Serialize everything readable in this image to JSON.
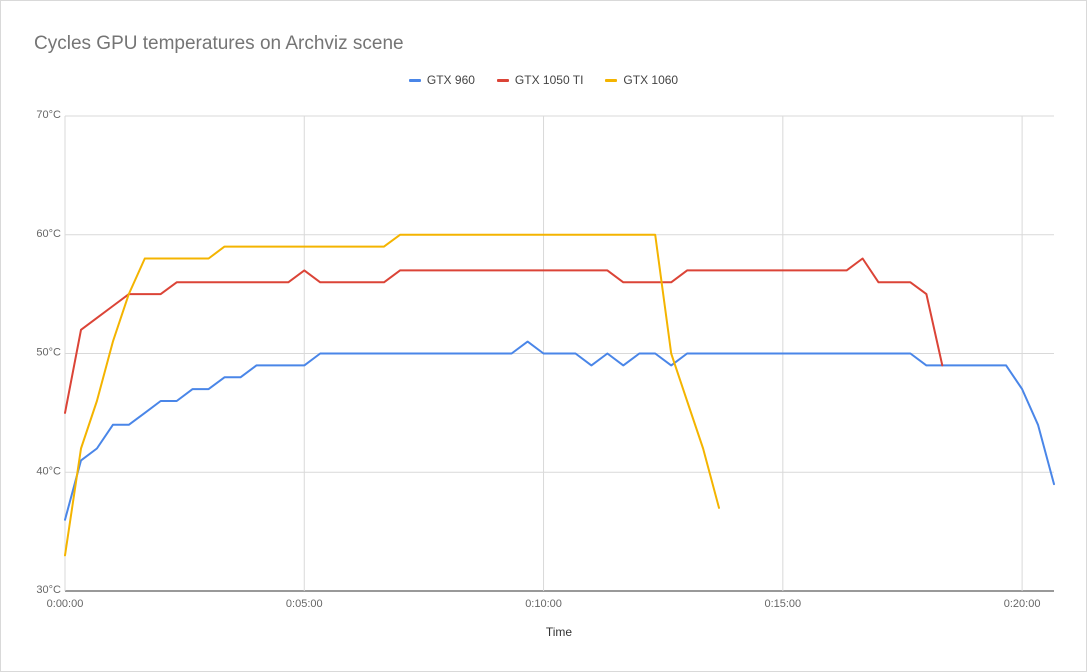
{
  "chart_data": {
    "type": "line",
    "title": "Cycles GPU temperatures on Archviz scene",
    "xlabel": "Time",
    "ylabel": "",
    "legend_position": "top",
    "grid": true,
    "y_axis": {
      "min": 30,
      "max": 70,
      "ticks": [
        30,
        40,
        50,
        60,
        70
      ],
      "tick_labels": [
        "30°C",
        "40°C",
        "50°C",
        "60°C",
        "70°C"
      ]
    },
    "x_axis": {
      "unit": "seconds",
      "min": 0,
      "max": 1240,
      "ticks": [
        0,
        300,
        600,
        900,
        1200
      ],
      "tick_labels": [
        "0:00:00",
        "0:05:00",
        "0:10:00",
        "0:15:00",
        "0:20:00"
      ]
    },
    "series": [
      {
        "name": "GTX 960",
        "color": "#4a86e8",
        "points": [
          [
            0,
            36
          ],
          [
            20,
            41
          ],
          [
            40,
            42
          ],
          [
            60,
            44
          ],
          [
            80,
            44
          ],
          [
            100,
            45
          ],
          [
            120,
            46
          ],
          [
            140,
            46
          ],
          [
            160,
            47
          ],
          [
            180,
            47
          ],
          [
            200,
            48
          ],
          [
            220,
            48
          ],
          [
            240,
            49
          ],
          [
            260,
            49
          ],
          [
            280,
            49
          ],
          [
            300,
            49
          ],
          [
            320,
            50
          ],
          [
            340,
            50
          ],
          [
            360,
            50
          ],
          [
            380,
            50
          ],
          [
            400,
            50
          ],
          [
            420,
            50
          ],
          [
            440,
            50
          ],
          [
            460,
            50
          ],
          [
            480,
            50
          ],
          [
            500,
            50
          ],
          [
            520,
            50
          ],
          [
            540,
            50
          ],
          [
            560,
            50
          ],
          [
            580,
            51
          ],
          [
            600,
            50
          ],
          [
            620,
            50
          ],
          [
            640,
            50
          ],
          [
            660,
            49
          ],
          [
            680,
            50
          ],
          [
            700,
            49
          ],
          [
            720,
            50
          ],
          [
            740,
            50
          ],
          [
            760,
            49
          ],
          [
            780,
            50
          ],
          [
            800,
            50
          ],
          [
            820,
            50
          ],
          [
            840,
            50
          ],
          [
            860,
            50
          ],
          [
            880,
            50
          ],
          [
            900,
            50
          ],
          [
            920,
            50
          ],
          [
            940,
            50
          ],
          [
            960,
            50
          ],
          [
            980,
            50
          ],
          [
            1000,
            50
          ],
          [
            1020,
            50
          ],
          [
            1040,
            50
          ],
          [
            1060,
            50
          ],
          [
            1080,
            49
          ],
          [
            1100,
            49
          ],
          [
            1120,
            49
          ],
          [
            1140,
            49
          ],
          [
            1160,
            49
          ],
          [
            1180,
            49
          ],
          [
            1200,
            47
          ],
          [
            1220,
            44
          ],
          [
            1240,
            39
          ]
        ]
      },
      {
        "name": "GTX 1050 TI",
        "color": "#db4437",
        "points": [
          [
            0,
            45
          ],
          [
            20,
            52
          ],
          [
            40,
            53
          ],
          [
            60,
            54
          ],
          [
            80,
            55
          ],
          [
            100,
            55
          ],
          [
            120,
            55
          ],
          [
            140,
            56
          ],
          [
            160,
            56
          ],
          [
            180,
            56
          ],
          [
            200,
            56
          ],
          [
            220,
            56
          ],
          [
            240,
            56
          ],
          [
            260,
            56
          ],
          [
            280,
            56
          ],
          [
            300,
            57
          ],
          [
            320,
            56
          ],
          [
            340,
            56
          ],
          [
            360,
            56
          ],
          [
            380,
            56
          ],
          [
            400,
            56
          ],
          [
            420,
            57
          ],
          [
            440,
            57
          ],
          [
            460,
            57
          ],
          [
            480,
            57
          ],
          [
            500,
            57
          ],
          [
            520,
            57
          ],
          [
            540,
            57
          ],
          [
            560,
            57
          ],
          [
            580,
            57
          ],
          [
            600,
            57
          ],
          [
            620,
            57
          ],
          [
            640,
            57
          ],
          [
            660,
            57
          ],
          [
            680,
            57
          ],
          [
            700,
            56
          ],
          [
            720,
            56
          ],
          [
            740,
            56
          ],
          [
            760,
            56
          ],
          [
            780,
            57
          ],
          [
            800,
            57
          ],
          [
            820,
            57
          ],
          [
            840,
            57
          ],
          [
            860,
            57
          ],
          [
            880,
            57
          ],
          [
            900,
            57
          ],
          [
            920,
            57
          ],
          [
            940,
            57
          ],
          [
            960,
            57
          ],
          [
            980,
            57
          ],
          [
            1000,
            58
          ],
          [
            1020,
            56
          ],
          [
            1040,
            56
          ],
          [
            1060,
            56
          ],
          [
            1080,
            55
          ],
          [
            1100,
            49
          ]
        ]
      },
      {
        "name": "GTX 1060",
        "color": "#f4b400",
        "points": [
          [
            0,
            33
          ],
          [
            20,
            42
          ],
          [
            40,
            46
          ],
          [
            60,
            51
          ],
          [
            80,
            55
          ],
          [
            100,
            58
          ],
          [
            120,
            58
          ],
          [
            140,
            58
          ],
          [
            160,
            58
          ],
          [
            180,
            58
          ],
          [
            200,
            59
          ],
          [
            220,
            59
          ],
          [
            240,
            59
          ],
          [
            260,
            59
          ],
          [
            280,
            59
          ],
          [
            300,
            59
          ],
          [
            320,
            59
          ],
          [
            340,
            59
          ],
          [
            360,
            59
          ],
          [
            380,
            59
          ],
          [
            400,
            59
          ],
          [
            420,
            60
          ],
          [
            440,
            60
          ],
          [
            460,
            60
          ],
          [
            480,
            60
          ],
          [
            500,
            60
          ],
          [
            520,
            60
          ],
          [
            540,
            60
          ],
          [
            560,
            60
          ],
          [
            580,
            60
          ],
          [
            600,
            60
          ],
          [
            620,
            60
          ],
          [
            640,
            60
          ],
          [
            660,
            60
          ],
          [
            680,
            60
          ],
          [
            700,
            60
          ],
          [
            720,
            60
          ],
          [
            740,
            60
          ],
          [
            760,
            50
          ],
          [
            780,
            46
          ],
          [
            800,
            42
          ],
          [
            820,
            37
          ]
        ]
      }
    ]
  }
}
